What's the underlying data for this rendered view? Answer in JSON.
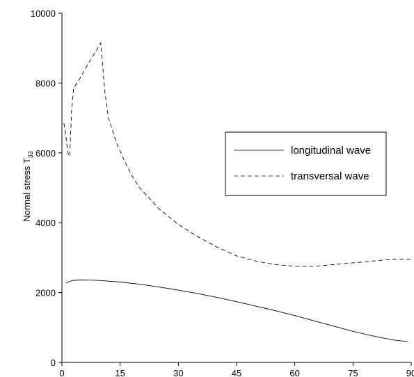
{
  "chart_data": {
    "type": "line",
    "title": "",
    "xlabel": "",
    "ylabel": "Normal stress T",
    "ylabel_subscript": "33",
    "xlim": [
      0,
      90
    ],
    "ylim": [
      0,
      10000
    ],
    "xticks": [
      0,
      15,
      30,
      45,
      60,
      75,
      90
    ],
    "yticks": [
      0,
      2000,
      4000,
      6000,
      8000,
      10000
    ],
    "grid": false,
    "legend_position": "center-right",
    "series": [
      {
        "name": "longitudinal wave",
        "style": "solid",
        "color": "#000000",
        "x": [
          1,
          2,
          3,
          5,
          8,
          10,
          15,
          20,
          25,
          30,
          35,
          40,
          45,
          50,
          55,
          60,
          65,
          70,
          75,
          80,
          85,
          88,
          89
        ],
        "y": [
          2270,
          2320,
          2350,
          2360,
          2355,
          2345,
          2300,
          2240,
          2160,
          2070,
          1970,
          1860,
          1740,
          1610,
          1480,
          1340,
          1190,
          1040,
          890,
          760,
          650,
          610,
          610
        ]
      },
      {
        "name": "transversal wave",
        "style": "dashed",
        "color": "#000000",
        "x": [
          0.5,
          1,
          1.5,
          2,
          2.5,
          3,
          5,
          7,
          9,
          10,
          10.5,
          11,
          12,
          14,
          16,
          18,
          20,
          25,
          30,
          35,
          40,
          45,
          50,
          55,
          60,
          65,
          70,
          75,
          80,
          85,
          90
        ],
        "y": [
          6850,
          6500,
          6000,
          5900,
          7200,
          7850,
          8200,
          8600,
          8950,
          9150,
          8500,
          7800,
          7000,
          6300,
          5800,
          5350,
          5000,
          4400,
          3950,
          3600,
          3300,
          3050,
          2900,
          2800,
          2750,
          2750,
          2800,
          2850,
          2900,
          2950,
          2950
        ]
      }
    ]
  }
}
